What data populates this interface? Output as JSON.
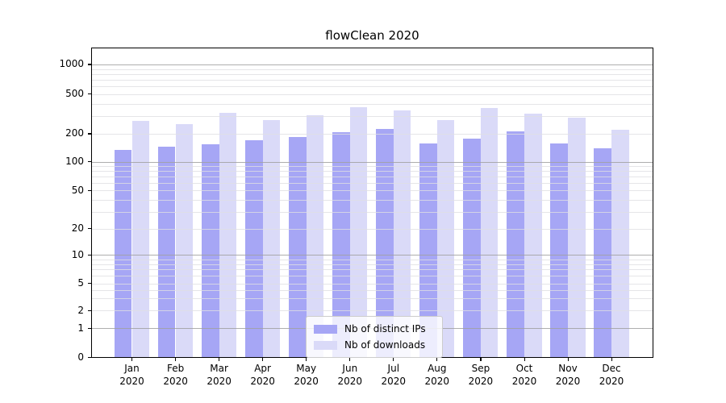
{
  "title": "flowClean 2020",
  "chart_data": {
    "type": "bar",
    "title": "flowClean 2020",
    "categories": [
      "Jan",
      "Feb",
      "Mar",
      "Apr",
      "May",
      "Jun",
      "Jul",
      "Aug",
      "Sep",
      "Oct",
      "Nov",
      "Dec"
    ],
    "category_year": "2020",
    "series": [
      {
        "name": "Nb of distinct IPs",
        "color": "#a6a6f5",
        "values": [
          135,
          144,
          154,
          172,
          186,
          208,
          222,
          156,
          179,
          211,
          156,
          141
        ]
      },
      {
        "name": "Nb of downloads",
        "color": "#dadaf8",
        "values": [
          268,
          251,
          325,
          276,
          305,
          369,
          343,
          274,
          363,
          320,
          290,
          221
        ]
      }
    ],
    "xlabel": "",
    "ylabel": "",
    "yscale": "symlog",
    "ylim": [
      0,
      1460
    ],
    "ytick_values": [
      1000,
      500,
      200,
      100,
      50,
      20,
      10,
      5,
      2,
      1,
      0
    ],
    "ytick_labels": [
      "1000",
      "500",
      "200",
      "100",
      "50",
      "20",
      "10",
      "5",
      "2",
      "1",
      "0"
    ],
    "grid": true,
    "grid_which": "both",
    "legend_position": "inside lower center",
    "colors": {
      "grid_major": "#a0a0a0",
      "grid_minor": "#dedee2",
      "axis": "#000000",
      "background": "#ffffff"
    }
  }
}
